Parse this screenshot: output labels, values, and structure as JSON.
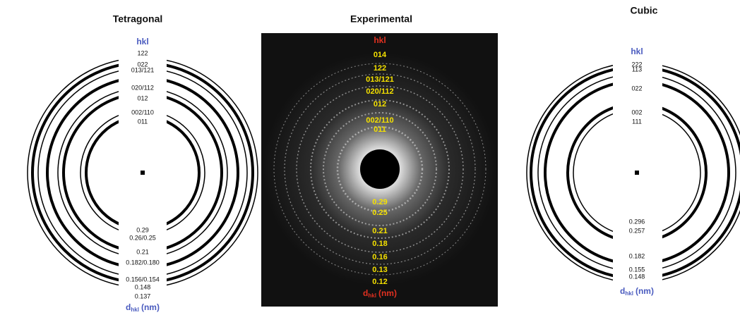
{
  "panels": [
    {
      "title": "Tetragonal",
      "hkl_header": "hkl",
      "hkl": [
        "122",
        "022",
        "013/121",
        "020/112",
        "012",
        "002/110",
        "011"
      ],
      "d": [
        "0.29",
        "0.26/0.25",
        "0.21",
        "0.182/0.180",
        "0.156/0.154",
        "0.148",
        "0.137"
      ],
      "d_header": {
        "symbol": "d",
        "subscript": "hkl",
        "unit": "(nm)"
      }
    },
    {
      "title": "Experimental",
      "hkl_header": "hkl",
      "hkl": [
        "014",
        "122",
        "013/121",
        "020/112",
        "012",
        "002/110",
        "011"
      ],
      "d": [
        "0.29",
        "0.25",
        "0.21",
        "0.18",
        "0.16",
        "0.13",
        "0.12"
      ],
      "d_header": {
        "symbol": "d",
        "subscript": "hkl",
        "unit": "(nm)"
      }
    },
    {
      "title": "Cubic",
      "hkl_header": "hkl",
      "hkl": [
        "222",
        "113",
        "022",
        "002",
        "111"
      ],
      "d": [
        "0.296",
        "0.257",
        "0.182",
        "0.155",
        "0.148"
      ],
      "d_header": {
        "symbol": "d",
        "subscript": "hkl",
        "unit": "(nm)"
      }
    }
  ]
}
